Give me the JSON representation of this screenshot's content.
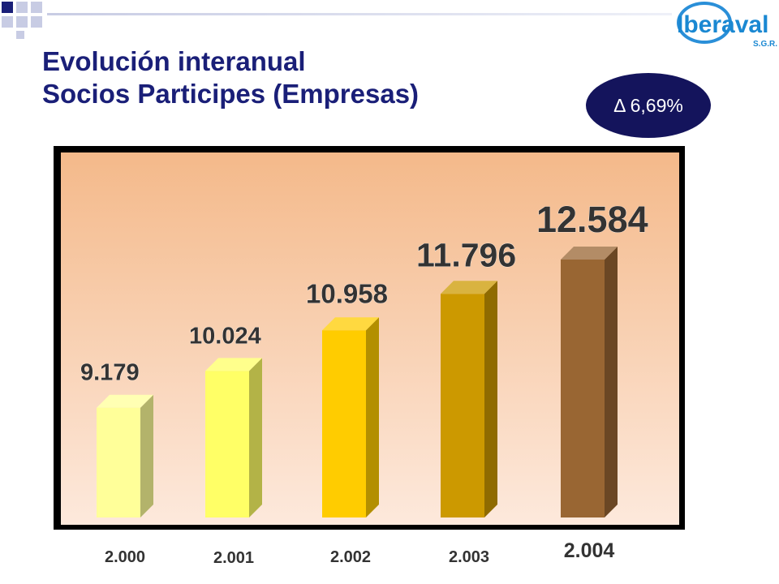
{
  "header": {
    "title_line1": "Evolución interanual",
    "title_line2": "Socios Participes  (Empresas)"
  },
  "badge": {
    "delta_label": "Δ 6,69%"
  },
  "logo": {
    "name": "Iberaval",
    "subtitle": "S.G.R."
  },
  "colors": {
    "title": "#1a1f78",
    "badge_bg": "#14145c",
    "plot_bg_top": "#f4b98a",
    "plot_bg_bottom": "#fde9dc",
    "bars": [
      "#ffff99",
      "#ffff66",
      "#ffcc00",
      "#cc9900",
      "#996633"
    ]
  },
  "chart_data": {
    "type": "bar",
    "title": "",
    "xlabel": "",
    "ylabel": "",
    "categories": [
      "2.000",
      "2.001",
      "2.002",
      "2.003",
      "2.004"
    ],
    "values": [
      9179,
      10024,
      10958,
      11796,
      12584
    ],
    "value_labels": [
      "9.179",
      "10.024",
      "10.958",
      "11.796",
      "12.584"
    ],
    "grid": false,
    "legend": "none",
    "style": "3d-columns"
  }
}
